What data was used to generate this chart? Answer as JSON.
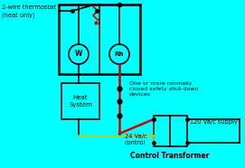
{
  "bg_color": "#00FFFF",
  "line_color_black": "#000000",
  "line_color_red": "#CC0000",
  "line_color_yellow": "#C8C800",
  "text_color_black": "#000000",
  "title_text": "Control Transformer",
  "label_thermostat": "2-wire thermostat\n(heat only)",
  "label_W": "W",
  "label_Rh": "Rh",
  "label_heat": "Heat\nSystem",
  "label_safety": "One or more normally\nclosed safety shut-down\ndevices",
  "label_24v": "24 Va/c\ncontrol",
  "label_120v": "120 Va/c supply",
  "figw": 2.71,
  "figh": 1.86,
  "dpi": 100
}
